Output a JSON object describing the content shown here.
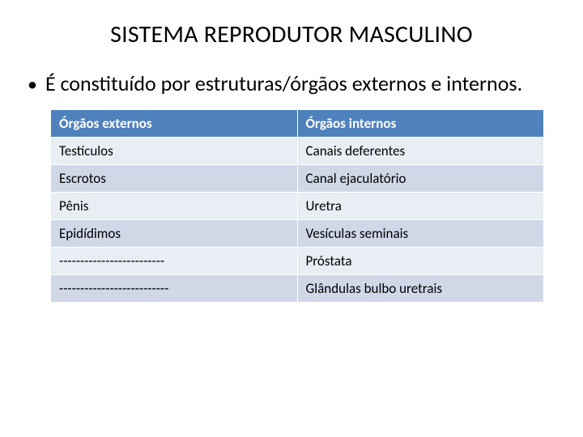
{
  "title": "SISTEMA REPRODUTOR MASCULINO",
  "bullet": {
    "marker": "•",
    "text": "É constituído por estruturas/órgãos externos e internos."
  },
  "table": {
    "type": "table",
    "header_bg": "#4f81bd",
    "header_fg": "#ffffff",
    "row_odd_bg": "#e9edf4",
    "row_even_bg": "#d0d8e8",
    "border_color": "#ffffff",
    "font_size": 17,
    "columns": [
      {
        "label": "Órgãos externos",
        "width": "50%"
      },
      {
        "label": "Órgãos internos",
        "width": "50%"
      }
    ],
    "rows": [
      [
        "Testículos",
        "Canais deferentes"
      ],
      [
        "Escrotos",
        "Canal ejaculatório"
      ],
      [
        "Pênis",
        "Uretra"
      ],
      [
        "Epidídimos",
        "Vesículas seminais"
      ],
      [
        "-------------------------",
        "Próstata"
      ],
      [
        "--------------------------",
        "Glândulas bulbo uretrais"
      ]
    ]
  },
  "colors": {
    "background": "#ffffff",
    "text": "#000000"
  },
  "typography": {
    "title_fontsize": 30,
    "bullet_fontsize": 26,
    "table_fontsize": 17,
    "font_family": "Calibri"
  }
}
